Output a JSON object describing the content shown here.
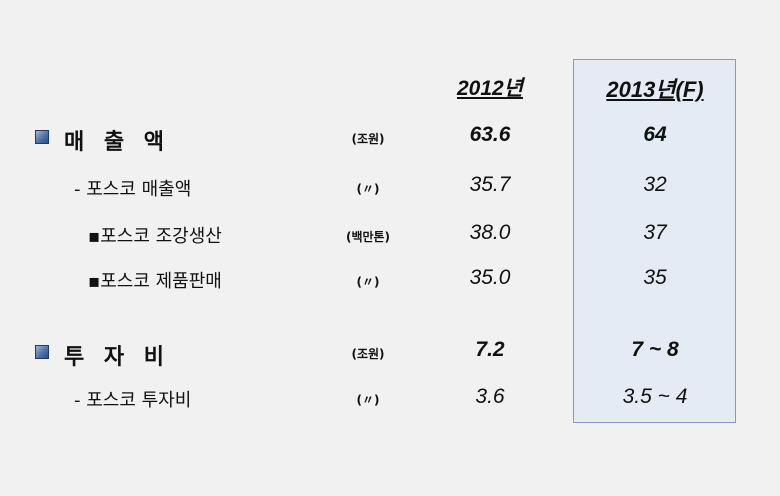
{
  "headers": {
    "y2012": "2012년",
    "y2013": "2013년(F)"
  },
  "rows": [
    {
      "label": "매 출 액",
      "unit": "(조원)",
      "v2012": "63.6",
      "v2013": "64"
    },
    {
      "label": "- 포스코 매출액",
      "unit": "(〃)",
      "v2012": "35.7",
      "v2013": "32"
    },
    {
      "label": "▪포스코 조강생산",
      "unit": "(백만톤)",
      "v2012": "38.0",
      "v2013": "37"
    },
    {
      "label": "▪포스코 제품판매",
      "unit": "(〃)",
      "v2012": "35.0",
      "v2013": "35"
    },
    {
      "label": "투 자 비",
      "unit": "(조원)",
      "v2012": "7.2",
      "v2013": "7 ~ 8"
    },
    {
      "label": "- 포스코 투자비",
      "unit": "(〃)",
      "v2012": "3.6",
      "v2013": "3.5 ~ 4"
    }
  ]
}
